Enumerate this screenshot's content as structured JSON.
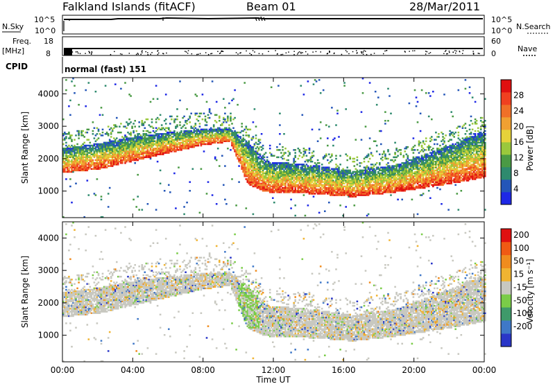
{
  "header": {
    "station": "Falkland Islands (fitACF)",
    "beam": "Beam 01",
    "date": "28/Mar/2011"
  },
  "top_panels": {
    "nsky_label": "N.Sky",
    "nsearch_label": "N.Search",
    "nsky_ticks": [
      "10^5",
      "10^0"
    ],
    "freq_label_1": "Freq.",
    "freq_label_2": "[MHz]",
    "freq_ticks": [
      "18",
      "8"
    ],
    "nave_label": "Nave",
    "nave_ticks": [
      "60",
      "0"
    ],
    "cpid_label": "CPID",
    "cpid_value": "normal (fast) 151"
  },
  "chart_data": [
    {
      "type": "heatmap",
      "name": "power",
      "xlabel": "Time UT",
      "ylabel": "Slant Range [km]",
      "x_ticks": [
        "00:00",
        "04:00",
        "08:00",
        "12:00",
        "16:00",
        "20:00",
        "00:00"
      ],
      "x_range_hours": [
        0,
        24
      ],
      "y_ticks": [
        1000,
        2000,
        3000,
        4000
      ],
      "ylim": [
        180,
        4500
      ],
      "colorbar": {
        "label": "Power [dB]",
        "ticks": [
          4,
          8,
          12,
          16,
          20,
          24,
          28
        ],
        "colors": [
          "#1e28e6",
          "#2456b8",
          "#2e8a6e",
          "#4a9a44",
          "#9ac83c",
          "#e6d23a",
          "#f0a032",
          "#f07028",
          "#f04020",
          "#e01010"
        ]
      },
      "echo_bands_km": [
        {
          "t": 0,
          "lo": 1550,
          "hi": 2300
        },
        {
          "t": 2,
          "lo": 1650,
          "hi": 2450
        },
        {
          "t": 4,
          "lo": 1900,
          "hi": 2650
        },
        {
          "t": 6,
          "lo": 2150,
          "hi": 2800
        },
        {
          "t": 8,
          "lo": 2400,
          "hi": 2900
        },
        {
          "t": 9.5,
          "lo": 2500,
          "hi": 2900
        },
        {
          "t": 10.5,
          "lo": 1200,
          "hi": 2500
        },
        {
          "t": 11.5,
          "lo": 950,
          "hi": 1900
        },
        {
          "t": 14,
          "lo": 900,
          "hi": 1800
        },
        {
          "t": 16.5,
          "lo": 800,
          "hi": 1600
        },
        {
          "t": 19,
          "lo": 950,
          "hi": 1800
        },
        {
          "t": 22,
          "lo": 1200,
          "hi": 2400
        },
        {
          "t": 24,
          "lo": 1400,
          "hi": 2850
        }
      ]
    },
    {
      "type": "heatmap",
      "name": "velocity",
      "xlabel": "Time UT",
      "ylabel": "Slant Range [km]",
      "x_ticks": [
        "00:00",
        "04:00",
        "08:00",
        "12:00",
        "16:00",
        "20:00",
        "00:00"
      ],
      "x_range_hours": [
        0,
        24
      ],
      "y_ticks": [
        1000,
        2000,
        3000,
        4000
      ],
      "ylim": [
        180,
        4500
      ],
      "colorbar": {
        "label": "Velocity [m s⁻¹]",
        "ticks": [
          200,
          100,
          50,
          15,
          -15,
          -50,
          -100,
          -200
        ],
        "colors": [
          "#2a36c8",
          "#3f78c8",
          "#3f9a6a",
          "#7acc48",
          "#c8c8c0",
          "#f0b432",
          "#f08c1e",
          "#f05a14",
          "#e01010"
        ]
      },
      "dominant_color": "#c8c8c0"
    }
  ]
}
